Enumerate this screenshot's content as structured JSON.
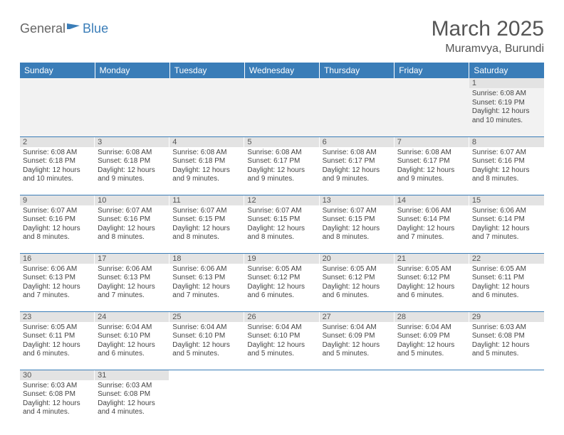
{
  "header": {
    "logo_general": "General",
    "logo_blue": "Blue",
    "title": "March 2025",
    "location": "Muramvya, Burundi"
  },
  "colors": {
    "header_bg": "#3a7db8",
    "header_text": "#ffffff",
    "daynum_bg": "#e3e3e3",
    "row_border": "#3a7db8"
  },
  "weekdays": [
    "Sunday",
    "Monday",
    "Tuesday",
    "Wednesday",
    "Thursday",
    "Friday",
    "Saturday"
  ],
  "weeks": [
    [
      null,
      null,
      null,
      null,
      null,
      null,
      {
        "n": "1",
        "sunrise": "Sunrise: 6:08 AM",
        "sunset": "Sunset: 6:19 PM",
        "daylight": "Daylight: 12 hours and 10 minutes."
      }
    ],
    [
      {
        "n": "2",
        "sunrise": "Sunrise: 6:08 AM",
        "sunset": "Sunset: 6:18 PM",
        "daylight": "Daylight: 12 hours and 10 minutes."
      },
      {
        "n": "3",
        "sunrise": "Sunrise: 6:08 AM",
        "sunset": "Sunset: 6:18 PM",
        "daylight": "Daylight: 12 hours and 9 minutes."
      },
      {
        "n": "4",
        "sunrise": "Sunrise: 6:08 AM",
        "sunset": "Sunset: 6:18 PM",
        "daylight": "Daylight: 12 hours and 9 minutes."
      },
      {
        "n": "5",
        "sunrise": "Sunrise: 6:08 AM",
        "sunset": "Sunset: 6:17 PM",
        "daylight": "Daylight: 12 hours and 9 minutes."
      },
      {
        "n": "6",
        "sunrise": "Sunrise: 6:08 AM",
        "sunset": "Sunset: 6:17 PM",
        "daylight": "Daylight: 12 hours and 9 minutes."
      },
      {
        "n": "7",
        "sunrise": "Sunrise: 6:08 AM",
        "sunset": "Sunset: 6:17 PM",
        "daylight": "Daylight: 12 hours and 9 minutes."
      },
      {
        "n": "8",
        "sunrise": "Sunrise: 6:07 AM",
        "sunset": "Sunset: 6:16 PM",
        "daylight": "Daylight: 12 hours and 8 minutes."
      }
    ],
    [
      {
        "n": "9",
        "sunrise": "Sunrise: 6:07 AM",
        "sunset": "Sunset: 6:16 PM",
        "daylight": "Daylight: 12 hours and 8 minutes."
      },
      {
        "n": "10",
        "sunrise": "Sunrise: 6:07 AM",
        "sunset": "Sunset: 6:16 PM",
        "daylight": "Daylight: 12 hours and 8 minutes."
      },
      {
        "n": "11",
        "sunrise": "Sunrise: 6:07 AM",
        "sunset": "Sunset: 6:15 PM",
        "daylight": "Daylight: 12 hours and 8 minutes."
      },
      {
        "n": "12",
        "sunrise": "Sunrise: 6:07 AM",
        "sunset": "Sunset: 6:15 PM",
        "daylight": "Daylight: 12 hours and 8 minutes."
      },
      {
        "n": "13",
        "sunrise": "Sunrise: 6:07 AM",
        "sunset": "Sunset: 6:15 PM",
        "daylight": "Daylight: 12 hours and 8 minutes."
      },
      {
        "n": "14",
        "sunrise": "Sunrise: 6:06 AM",
        "sunset": "Sunset: 6:14 PM",
        "daylight": "Daylight: 12 hours and 7 minutes."
      },
      {
        "n": "15",
        "sunrise": "Sunrise: 6:06 AM",
        "sunset": "Sunset: 6:14 PM",
        "daylight": "Daylight: 12 hours and 7 minutes."
      }
    ],
    [
      {
        "n": "16",
        "sunrise": "Sunrise: 6:06 AM",
        "sunset": "Sunset: 6:13 PM",
        "daylight": "Daylight: 12 hours and 7 minutes."
      },
      {
        "n": "17",
        "sunrise": "Sunrise: 6:06 AM",
        "sunset": "Sunset: 6:13 PM",
        "daylight": "Daylight: 12 hours and 7 minutes."
      },
      {
        "n": "18",
        "sunrise": "Sunrise: 6:06 AM",
        "sunset": "Sunset: 6:13 PM",
        "daylight": "Daylight: 12 hours and 7 minutes."
      },
      {
        "n": "19",
        "sunrise": "Sunrise: 6:05 AM",
        "sunset": "Sunset: 6:12 PM",
        "daylight": "Daylight: 12 hours and 6 minutes."
      },
      {
        "n": "20",
        "sunrise": "Sunrise: 6:05 AM",
        "sunset": "Sunset: 6:12 PM",
        "daylight": "Daylight: 12 hours and 6 minutes."
      },
      {
        "n": "21",
        "sunrise": "Sunrise: 6:05 AM",
        "sunset": "Sunset: 6:12 PM",
        "daylight": "Daylight: 12 hours and 6 minutes."
      },
      {
        "n": "22",
        "sunrise": "Sunrise: 6:05 AM",
        "sunset": "Sunset: 6:11 PM",
        "daylight": "Daylight: 12 hours and 6 minutes."
      }
    ],
    [
      {
        "n": "23",
        "sunrise": "Sunrise: 6:05 AM",
        "sunset": "Sunset: 6:11 PM",
        "daylight": "Daylight: 12 hours and 6 minutes."
      },
      {
        "n": "24",
        "sunrise": "Sunrise: 6:04 AM",
        "sunset": "Sunset: 6:10 PM",
        "daylight": "Daylight: 12 hours and 6 minutes."
      },
      {
        "n": "25",
        "sunrise": "Sunrise: 6:04 AM",
        "sunset": "Sunset: 6:10 PM",
        "daylight": "Daylight: 12 hours and 5 minutes."
      },
      {
        "n": "26",
        "sunrise": "Sunrise: 6:04 AM",
        "sunset": "Sunset: 6:10 PM",
        "daylight": "Daylight: 12 hours and 5 minutes."
      },
      {
        "n": "27",
        "sunrise": "Sunrise: 6:04 AM",
        "sunset": "Sunset: 6:09 PM",
        "daylight": "Daylight: 12 hours and 5 minutes."
      },
      {
        "n": "28",
        "sunrise": "Sunrise: 6:04 AM",
        "sunset": "Sunset: 6:09 PM",
        "daylight": "Daylight: 12 hours and 5 minutes."
      },
      {
        "n": "29",
        "sunrise": "Sunrise: 6:03 AM",
        "sunset": "Sunset: 6:08 PM",
        "daylight": "Daylight: 12 hours and 5 minutes."
      }
    ],
    [
      {
        "n": "30",
        "sunrise": "Sunrise: 6:03 AM",
        "sunset": "Sunset: 6:08 PM",
        "daylight": "Daylight: 12 hours and 4 minutes."
      },
      {
        "n": "31",
        "sunrise": "Sunrise: 6:03 AM",
        "sunset": "Sunset: 6:08 PM",
        "daylight": "Daylight: 12 hours and 4 minutes."
      },
      null,
      null,
      null,
      null,
      null
    ]
  ]
}
